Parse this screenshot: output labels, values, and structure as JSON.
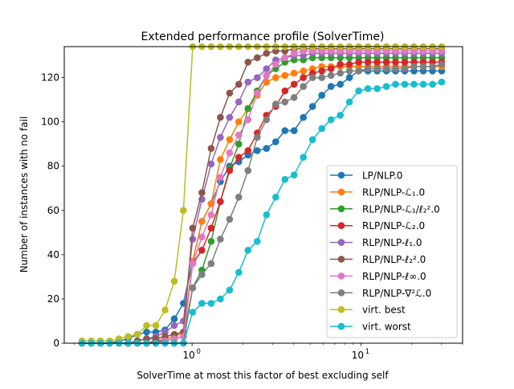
{
  "chart_data": {
    "type": "line",
    "title": "Extended performance profile (SolverTime)",
    "xlabel": "SolverTime at most this factor of best excluding self",
    "ylabel": "Number of instances with no fail",
    "xscale": "log",
    "xlim": [
      0.175,
      40
    ],
    "ylim": [
      0,
      134
    ],
    "xticks": [
      {
        "value": 1,
        "label": "10",
        "exp": "0"
      },
      {
        "value": 10,
        "label": "10",
        "exp": "1"
      }
    ],
    "yticks": [
      0,
      20,
      40,
      60,
      80,
      100,
      120
    ],
    "legend_position": "lower-right",
    "grid": false,
    "x_start": 0.223,
    "x_ratio": 1.134,
    "series": [
      {
        "name": "LP/NLP.0",
        "color": "#1f77b4",
        "values": [
          0,
          0,
          0,
          0,
          1,
          2,
          4,
          5,
          5,
          6,
          11,
          18,
          37,
          55,
          63,
          73,
          80,
          82,
          85,
          87,
          88,
          91,
          96,
          96,
          102,
          107,
          112,
          116,
          117,
          120,
          123,
          123,
          123,
          123,
          123,
          123,
          123,
          123,
          123,
          123
        ]
      },
      {
        "name": "RLP/NLP-ℒ₁.0",
        "color": "#ff7f0e",
        "values": [
          0,
          0,
          0,
          0,
          0,
          0,
          0,
          0,
          1,
          2,
          3,
          5,
          37,
          55,
          63,
          83,
          92,
          100,
          106,
          112,
          118,
          120,
          121,
          122,
          123,
          124,
          125,
          125,
          125,
          125,
          125,
          125,
          125,
          125,
          125,
          125,
          125,
          125,
          125,
          125
        ]
      },
      {
        "name": "RLP/NLP-ℒ₁/ℓ₂².0",
        "color": "#2ca02c",
        "values": [
          0,
          0,
          0,
          0,
          0,
          0,
          0,
          0,
          0,
          1,
          2,
          3,
          25,
          33,
          46,
          64,
          79,
          90,
          106,
          114,
          121,
          124,
          127,
          128,
          128,
          129,
          129,
          129,
          129,
          129,
          129,
          129,
          129,
          129,
          129,
          129,
          129,
          129,
          129,
          129
        ]
      },
      {
        "name": "RLP/NLP-ℒ₂.0",
        "color": "#d62728",
        "values": [
          0,
          0,
          0,
          0,
          0,
          0,
          0,
          0,
          1,
          1,
          2,
          3,
          36,
          42,
          52,
          64,
          78,
          84,
          87,
          95,
          103,
          107,
          114,
          117,
          120,
          122,
          123,
          124,
          126,
          126,
          127,
          127,
          127,
          127,
          127,
          127,
          127,
          127,
          127,
          127
        ]
      },
      {
        "name": "RLP/NLP-ℓ₁.0",
        "color": "#9467bd",
        "values": [
          0,
          0,
          0,
          0,
          0,
          0,
          1,
          2,
          3,
          5,
          8,
          10,
          47,
          65,
          81,
          93,
          102,
          109,
          118,
          120,
          124,
          128,
          129,
          130,
          130,
          131,
          131,
          131,
          131,
          131,
          131,
          131,
          131,
          131,
          131,
          131,
          131,
          131,
          131,
          131
        ]
      },
      {
        "name": "RLP/NLP-ℓ₂².0",
        "color": "#8c564b",
        "values": [
          0,
          0,
          0,
          0,
          0,
          0,
          1,
          2,
          2,
          3,
          4,
          5,
          52,
          68,
          88,
          102,
          113,
          117,
          127,
          129,
          131,
          132,
          132,
          133,
          133,
          133,
          133,
          133,
          133,
          133,
          133,
          133,
          133,
          133,
          133,
          133,
          133,
          133,
          133,
          133
        ]
      },
      {
        "name": "RLP/NLP-ℓ∞.0",
        "color": "#e377c2",
        "values": [
          0,
          0,
          0,
          0,
          0,
          0,
          0,
          0,
          0,
          1,
          2,
          3,
          36,
          48,
          58,
          75,
          86,
          94,
          101,
          113,
          121,
          126,
          129,
          131,
          132,
          132,
          132,
          132,
          132,
          132,
          132,
          132,
          132,
          132,
          132,
          132,
          132,
          132,
          132,
          132
        ]
      },
      {
        "name": "RLP/NLP-∇²ℒ.0",
        "color": "#7f7f7f",
        "values": [
          0,
          0,
          0,
          0,
          0,
          0,
          0,
          0,
          0,
          0,
          0,
          0,
          25,
          31,
          36,
          47,
          56,
          66,
          78,
          93,
          101,
          108,
          109,
          111,
          116,
          120,
          120,
          121,
          122,
          123,
          123,
          124,
          124,
          124,
          124,
          124,
          125,
          125,
          125,
          126
        ]
      },
      {
        "name": "virt. best",
        "color": "#bcbd22",
        "values": [
          1,
          1,
          1,
          1,
          2,
          3,
          4,
          8,
          8,
          15,
          28,
          60,
          134,
          134,
          134,
          134,
          134,
          134,
          134,
          134,
          134,
          134,
          134,
          134,
          134,
          134,
          134,
          134,
          134,
          134,
          134,
          134,
          134,
          134,
          134,
          134,
          134,
          134,
          134,
          134
        ]
      },
      {
        "name": "virt. worst",
        "color": "#17becf",
        "values": [
          0,
          0,
          0,
          0,
          0,
          0,
          0,
          0,
          0,
          0,
          0,
          0,
          14,
          18,
          18,
          20,
          24,
          32,
          42,
          46,
          58,
          66,
          74,
          76,
          84,
          92,
          97,
          101,
          103,
          109,
          114,
          115,
          115,
          116,
          117,
          117,
          117,
          117,
          117,
          118
        ]
      }
    ]
  }
}
